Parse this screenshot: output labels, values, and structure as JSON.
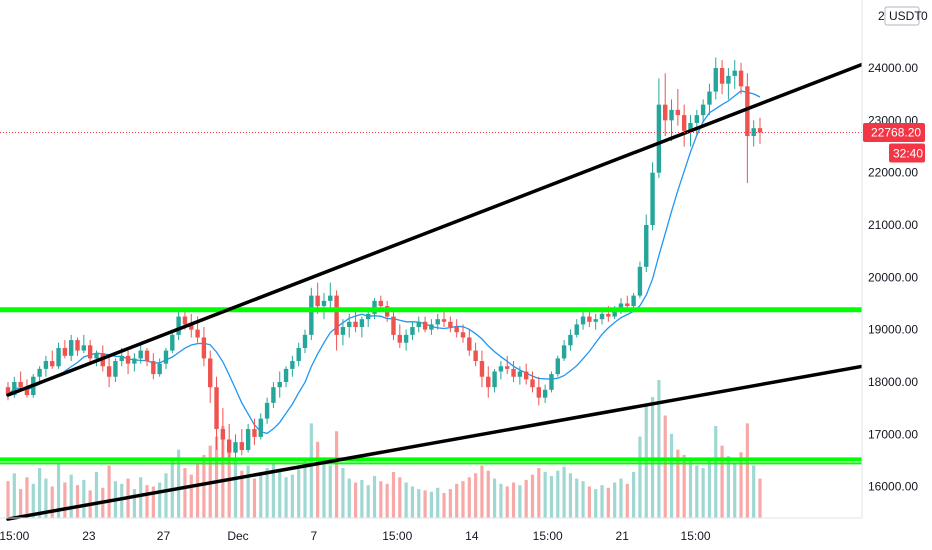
{
  "header": {
    "partial_label": "2",
    "currency_badge": "USDT",
    "badge_suffix": "0"
  },
  "price_tag": {
    "last_price": "22768.20",
    "countdown": "32:40",
    "color": "#f23645"
  },
  "colors": {
    "up": "#26a69a",
    "down": "#ef5350",
    "volume_up": "#9fd8d3",
    "volume_down": "#f7a9a7",
    "ma": "#2196f3",
    "trendline": "#000000",
    "horizontal_level": "#00ff00",
    "price_line": "#f23645"
  },
  "chart_data": {
    "type": "candlestick",
    "symbol_quote": "USDT",
    "ylim": [
      15400,
      25300
    ],
    "y_ticks": [
      "16000.00",
      "17000.00",
      "18000.00",
      "19000.00",
      "20000.00",
      "21000.00",
      "22000.00",
      "23000.00",
      "24000.00"
    ],
    "x_ticks": [
      "15:00",
      "23",
      "27",
      "Dec",
      "7",
      "15:00",
      "14",
      "15:00",
      "21",
      "15:00"
    ],
    "horizontal_levels": [
      19380,
      16520
    ],
    "trendlines": [
      {
        "name": "upper-channel",
        "from": [
          0,
          17750
        ],
        "to": [
          154,
          24950
        ]
      },
      {
        "name": "lower-channel",
        "from": [
          0,
          15380
        ],
        "to": [
          170,
          19050
        ]
      }
    ],
    "last_price": 22768.2,
    "candles_note": "open/high/low/close/volume per bar, oldest first",
    "candles": [
      [
        17900,
        18000,
        17650,
        17750,
        28
      ],
      [
        17750,
        18100,
        17700,
        18000,
        34
      ],
      [
        18000,
        18200,
        17850,
        17900,
        22
      ],
      [
        17900,
        18050,
        17700,
        17750,
        31
      ],
      [
        17750,
        18150,
        17700,
        18100,
        26
      ],
      [
        18100,
        18300,
        17950,
        18250,
        38
      ],
      [
        18250,
        18500,
        18100,
        18400,
        30
      ],
      [
        18400,
        18600,
        18250,
        18300,
        24
      ],
      [
        18300,
        18750,
        18250,
        18650,
        42
      ],
      [
        18650,
        18800,
        18450,
        18500,
        27
      ],
      [
        18500,
        18900,
        18400,
        18800,
        33
      ],
      [
        18800,
        18850,
        18500,
        18600,
        25
      ],
      [
        18600,
        18900,
        18550,
        18700,
        29
      ],
      [
        18700,
        18800,
        18350,
        18450,
        21
      ],
      [
        18450,
        18600,
        18300,
        18550,
        35
      ],
      [
        18550,
        18700,
        18200,
        18300,
        23
      ],
      [
        18300,
        18500,
        17900,
        18100,
        40
      ],
      [
        18100,
        18450,
        18000,
        18400,
        28
      ],
      [
        18400,
        18650,
        18300,
        18500,
        26
      ],
      [
        18500,
        18600,
        18150,
        18350,
        30
      ],
      [
        18350,
        18550,
        18200,
        18450,
        22
      ],
      [
        18450,
        18700,
        18350,
        18600,
        31
      ],
      [
        18600,
        18650,
        18300,
        18400,
        25
      ],
      [
        18400,
        18550,
        18050,
        18150,
        24
      ],
      [
        18150,
        18450,
        18100,
        18350,
        27
      ],
      [
        18350,
        18650,
        18250,
        18600,
        34
      ],
      [
        18600,
        19000,
        18550,
        18900,
        45
      ],
      [
        18900,
        19350,
        18800,
        19250,
        52
      ],
      [
        19250,
        19400,
        19000,
        19100,
        38
      ],
      [
        19100,
        19300,
        18850,
        19000,
        33
      ],
      [
        19000,
        19250,
        18750,
        18850,
        41
      ],
      [
        18850,
        19050,
        18300,
        18450,
        48
      ],
      [
        18450,
        18600,
        17600,
        17900,
        55
      ],
      [
        17900,
        18100,
        16700,
        17100,
        62
      ],
      [
        17100,
        17500,
        16500,
        16900,
        70
      ],
      [
        16900,
        17200,
        16450,
        16650,
        58
      ],
      [
        16650,
        17000,
        16500,
        16850,
        44
      ],
      [
        16850,
        17100,
        16600,
        16700,
        36
      ],
      [
        16700,
        17200,
        16650,
        17100,
        40
      ],
      [
        17100,
        17300,
        16800,
        16950,
        30
      ],
      [
        16950,
        17400,
        16900,
        17300,
        34
      ],
      [
        17300,
        17700,
        17200,
        17600,
        38
      ],
      [
        17600,
        18000,
        17500,
        17900,
        42
      ],
      [
        17900,
        18200,
        17700,
        18000,
        36
      ],
      [
        18000,
        18300,
        17900,
        18250,
        31
      ],
      [
        18250,
        18500,
        18100,
        18400,
        33
      ],
      [
        18400,
        18750,
        18300,
        18650,
        37
      ],
      [
        18650,
        19000,
        18550,
        18900,
        44
      ],
      [
        18900,
        19800,
        18800,
        19650,
        72
      ],
      [
        19650,
        19900,
        19300,
        19450,
        58
      ],
      [
        19450,
        19700,
        19200,
        19550,
        46
      ],
      [
        19550,
        19900,
        19400,
        19650,
        40
      ],
      [
        19650,
        19750,
        18600,
        18900,
        66
      ],
      [
        18900,
        19200,
        18700,
        19050,
        38
      ],
      [
        19050,
        19300,
        18850,
        19150,
        30
      ],
      [
        19150,
        19350,
        18950,
        19050,
        27
      ],
      [
        19050,
        19250,
        18850,
        19200,
        29
      ],
      [
        19200,
        19400,
        19050,
        19300,
        25
      ],
      [
        19300,
        19600,
        19200,
        19550,
        32
      ],
      [
        19550,
        19650,
        19350,
        19450,
        28
      ],
      [
        19450,
        19550,
        19150,
        19250,
        26
      ],
      [
        19250,
        19350,
        18800,
        18900,
        35
      ],
      [
        18900,
        19100,
        18650,
        18750,
        31
      ],
      [
        18750,
        19000,
        18600,
        18900,
        27
      ],
      [
        18900,
        19150,
        18800,
        19050,
        24
      ],
      [
        19050,
        19250,
        18950,
        19150,
        22
      ],
      [
        19150,
        19250,
        18950,
        19000,
        21
      ],
      [
        19000,
        19200,
        18900,
        19100,
        20
      ],
      [
        19100,
        19300,
        19000,
        19200,
        23
      ],
      [
        19200,
        19350,
        19050,
        19150,
        19
      ],
      [
        19150,
        19250,
        18950,
        19050,
        22
      ],
      [
        19050,
        19200,
        18850,
        18950,
        26
      ],
      [
        18950,
        19100,
        18750,
        18850,
        28
      ],
      [
        18850,
        19000,
        18500,
        18600,
        31
      ],
      [
        18600,
        18750,
        18300,
        18400,
        34
      ],
      [
        18400,
        18600,
        17900,
        18100,
        40
      ],
      [
        18100,
        18300,
        17700,
        17900,
        36
      ],
      [
        17900,
        18250,
        17800,
        18200,
        30
      ],
      [
        18200,
        18400,
        18050,
        18300,
        26
      ],
      [
        18300,
        18500,
        18150,
        18250,
        24
      ],
      [
        18250,
        18400,
        18000,
        18100,
        27
      ],
      [
        18100,
        18300,
        17950,
        18200,
        25
      ],
      [
        18200,
        18350,
        17950,
        18050,
        29
      ],
      [
        18050,
        18200,
        17800,
        17900,
        33
      ],
      [
        17900,
        18100,
        17550,
        17700,
        38
      ],
      [
        17700,
        17950,
        17600,
        17850,
        35
      ],
      [
        17850,
        18200,
        17800,
        18150,
        32
      ],
      [
        18150,
        18500,
        18100,
        18450,
        36
      ],
      [
        18450,
        18800,
        18400,
        18700,
        39
      ],
      [
        18700,
        19000,
        18600,
        18900,
        34
      ],
      [
        18900,
        19200,
        18850,
        19100,
        30
      ],
      [
        19100,
        19400,
        19000,
        19250,
        28
      ],
      [
        19250,
        19350,
        19050,
        19150,
        24
      ],
      [
        19150,
        19300,
        19000,
        19200,
        22
      ],
      [
        19200,
        19400,
        19100,
        19300,
        25
      ],
      [
        19300,
        19450,
        19150,
        19250,
        23
      ],
      [
        19250,
        19450,
        19200,
        19400,
        27
      ],
      [
        19400,
        19600,
        19300,
        19500,
        30
      ],
      [
        19500,
        19650,
        19350,
        19450,
        26
      ],
      [
        19450,
        19700,
        19400,
        19650,
        35
      ],
      [
        19650,
        20300,
        19600,
        20200,
        62
      ],
      [
        20200,
        21200,
        20100,
        21000,
        85
      ],
      [
        21000,
        22200,
        20900,
        22000,
        92
      ],
      [
        22000,
        23800,
        21900,
        23300,
        105
      ],
      [
        23300,
        23900,
        22700,
        23000,
        78
      ],
      [
        23000,
        23400,
        22600,
        23200,
        64
      ],
      [
        23200,
        23600,
        22900,
        23100,
        52
      ],
      [
        23100,
        23300,
        22500,
        22800,
        48
      ],
      [
        22800,
        23100,
        22500,
        22950,
        44
      ],
      [
        22950,
        23200,
        22700,
        23100,
        40
      ],
      [
        23100,
        23400,
        22950,
        23300,
        38
      ],
      [
        23300,
        23700,
        23100,
        23550,
        46
      ],
      [
        23550,
        24200,
        23400,
        24000,
        70
      ],
      [
        24000,
        24150,
        23500,
        23700,
        55
      ],
      [
        23700,
        24000,
        23400,
        23850,
        47
      ],
      [
        23850,
        24150,
        23600,
        23950,
        42
      ],
      [
        23950,
        24100,
        23500,
        23650,
        50
      ],
      [
        23650,
        23900,
        21800,
        22700,
        72
      ],
      [
        22700,
        23000,
        22500,
        22850,
        40
      ],
      [
        22850,
        23050,
        22550,
        22768,
        30
      ]
    ]
  }
}
